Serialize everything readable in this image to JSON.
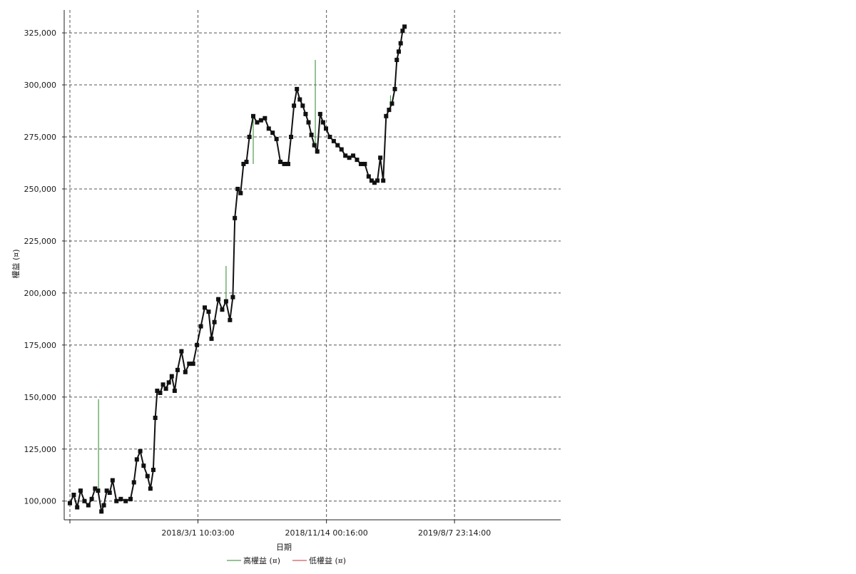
{
  "chart_data": {
    "type": "line",
    "xlabel": "日期",
    "ylabel": "權益 (¤)",
    "ylim": [
      91000,
      336000
    ],
    "y_ticks": [
      100000,
      125000,
      150000,
      175000,
      200000,
      225000,
      250000,
      275000,
      300000,
      325000
    ],
    "y_tick_labels": [
      "100,000",
      "125,000",
      "150,000",
      "175,000",
      "200,000",
      "225,000",
      "250,000",
      "275,000",
      "300,000",
      "325,000"
    ],
    "x_ticks": [
      "2018/3/1 10:03:00",
      "2018/11/14 00:16:00",
      "2019/8/7 23:14:00"
    ],
    "x_range_index": [
      0,
      1000
    ],
    "x_tick_index": [
      264,
      529,
      793
    ],
    "grid": true,
    "legend_position": "bottom",
    "legend": [
      {
        "label": "高權益 (¤)",
        "color": "#2a8a2a"
      },
      {
        "label": "低權益 (¤)",
        "color": "#c83232"
      }
    ],
    "series": [
      {
        "name": "權益 (¤)",
        "color": "#111111",
        "points": [
          [
            0,
            99000
          ],
          [
            8,
            103000
          ],
          [
            15,
            97000
          ],
          [
            22,
            105000
          ],
          [
            30,
            100000
          ],
          [
            38,
            98000
          ],
          [
            45,
            101000
          ],
          [
            52,
            106000
          ],
          [
            58,
            105000
          ],
          [
            65,
            95000
          ],
          [
            70,
            98000
          ],
          [
            76,
            105000
          ],
          [
            82,
            104000
          ],
          [
            88,
            110000
          ],
          [
            96,
            100000
          ],
          [
            105,
            101000
          ],
          [
            115,
            100000
          ],
          [
            125,
            101000
          ],
          [
            132,
            109000
          ],
          [
            138,
            120000
          ],
          [
            145,
            124000
          ],
          [
            152,
            117000
          ],
          [
            160,
            112000
          ],
          [
            166,
            106000
          ],
          [
            172,
            115000
          ],
          [
            176,
            140000
          ],
          [
            180,
            153000
          ],
          [
            186,
            152000
          ],
          [
            192,
            156000
          ],
          [
            198,
            154000
          ],
          [
            204,
            157000
          ],
          [
            210,
            160000
          ],
          [
            216,
            153000
          ],
          [
            222,
            163000
          ],
          [
            230,
            172000
          ],
          [
            238,
            162000
          ],
          [
            246,
            166000
          ],
          [
            254,
            166000
          ],
          [
            262,
            175000
          ],
          [
            270,
            184000
          ],
          [
            278,
            193000
          ],
          [
            286,
            191000
          ],
          [
            292,
            178000
          ],
          [
            298,
            186000
          ],
          [
            306,
            197000
          ],
          [
            314,
            192000
          ],
          [
            322,
            196000
          ],
          [
            330,
            187000
          ],
          [
            336,
            198000
          ],
          [
            340,
            236000
          ],
          [
            346,
            250000
          ],
          [
            352,
            248000
          ],
          [
            358,
            262000
          ],
          [
            364,
            263000
          ],
          [
            370,
            275000
          ],
          [
            378,
            285000
          ],
          [
            386,
            282000
          ],
          [
            394,
            283000
          ],
          [
            402,
            284000
          ],
          [
            410,
            279000
          ],
          [
            418,
            277000
          ],
          [
            426,
            274000
          ],
          [
            434,
            263000
          ],
          [
            442,
            262000
          ],
          [
            450,
            262000
          ],
          [
            456,
            275000
          ],
          [
            462,
            290000
          ],
          [
            468,
            298000
          ],
          [
            474,
            293000
          ],
          [
            480,
            290000
          ],
          [
            486,
            286000
          ],
          [
            492,
            282000
          ],
          [
            498,
            276000
          ],
          [
            504,
            271000
          ],
          [
            510,
            268000
          ],
          [
            516,
            286000
          ],
          [
            522,
            282000
          ],
          [
            528,
            279000
          ],
          [
            536,
            275000
          ],
          [
            544,
            273000
          ],
          [
            552,
            271000
          ],
          [
            560,
            269000
          ],
          [
            568,
            266000
          ],
          [
            576,
            265000
          ],
          [
            584,
            266000
          ],
          [
            592,
            264000
          ],
          [
            600,
            262000
          ],
          [
            608,
            262000
          ],
          [
            616,
            256000
          ],
          [
            622,
            254000
          ],
          [
            628,
            253000
          ],
          [
            634,
            254000
          ],
          [
            640,
            265000
          ],
          [
            646,
            254000
          ],
          [
            652,
            285000
          ],
          [
            658,
            288000
          ],
          [
            664,
            291000
          ],
          [
            670,
            298000
          ],
          [
            674,
            312000
          ],
          [
            678,
            316000
          ],
          [
            682,
            320000
          ],
          [
            686,
            326000
          ],
          [
            690,
            328000
          ]
        ]
      }
    ],
    "spikes_high": [
      {
        "x": 59,
        "value": 149000
      },
      {
        "x": 322,
        "value": 213000
      },
      {
        "x": 378,
        "value": 262000
      },
      {
        "x": 506,
        "value": 312000
      },
      {
        "x": 661,
        "value": 295000
      }
    ]
  }
}
